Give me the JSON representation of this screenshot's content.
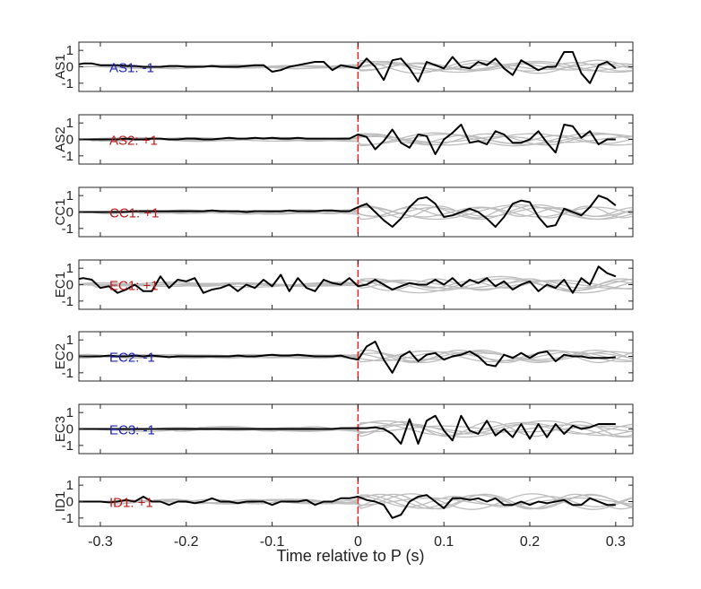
{
  "chart_data": {
    "type": "line",
    "xlabel": "Time relative to P (s)",
    "xlim": [
      -0.325,
      0.32
    ],
    "ylim": [
      -1.5,
      1.5
    ],
    "xticks": [
      -0.3,
      -0.2,
      -0.1,
      0,
      0.1,
      0.2,
      0.3
    ],
    "xtick_labels": [
      "-0.3",
      "-0.2",
      "-0.1",
      "0",
      "0.1",
      "0.2",
      "0.3"
    ],
    "yticks": [
      -1,
      0,
      1
    ],
    "ytick_labels": [
      "-1",
      "0",
      "1"
    ],
    "marker_time": 0,
    "colors": {
      "marker": "#e8241c",
      "main": "#000000",
      "background": "#bdbdbd",
      "positive_label": "#c0191b",
      "negative_label": "#1e24b4"
    },
    "dt": 0.01,
    "t0": -0.33,
    "panels": [
      {
        "station": "AS1",
        "annotation": "AS1: -1",
        "polarity": -1,
        "values": [
          0.1,
          0.2,
          0.2,
          0.1,
          0.1,
          0.1,
          0.05,
          0.05,
          0.0,
          0.0,
          0.0,
          0.05,
          0.05,
          0.0,
          0.0,
          0.0,
          0.05,
          0.0,
          0.0,
          0.0,
          0.05,
          0.1,
          0.1,
          -0.3,
          -0.2,
          0.0,
          0.1,
          0.2,
          0.3,
          0.3,
          -0.2,
          0.1,
          0.0,
          -0.1,
          0.5,
          0.0,
          -0.8,
          0.4,
          0.5,
          -0.1,
          -0.9,
          0.3,
          0.1,
          -0.1,
          0.6,
          0.0,
          -0.1,
          0.3,
          0.1,
          0.5,
          -0.1,
          -0.5,
          0.4,
          0.1,
          -0.2,
          0.0,
          0.0,
          0.9,
          0.9,
          -0.4,
          -1.0,
          0.1,
          0.3,
          -0.1
        ]
      },
      {
        "station": "AS2",
        "annotation": "AS2: +1",
        "polarity": 1,
        "values": [
          0.0,
          0.0,
          0.0,
          0.0,
          0.0,
          0.0,
          0.05,
          0.0,
          0.0,
          0.05,
          0.05,
          0.0,
          0.0,
          0.05,
          0.05,
          0.0,
          0.0,
          0.05,
          0.1,
          0.05,
          0.05,
          0.1,
          0.05,
          0.1,
          0.05,
          0.05,
          0.1,
          0.05,
          0.05,
          0.05,
          0.05,
          0.05,
          0.05,
          0.3,
          0.15,
          -0.6,
          -0.1,
          0.6,
          -0.2,
          -0.5,
          0.3,
          0.2,
          -0.9,
          0.0,
          0.4,
          0.9,
          -0.2,
          -0.1,
          -0.3,
          0.5,
          0.3,
          -0.2,
          -0.2,
          0.0,
          0.5,
          -0.2,
          -0.8,
          0.9,
          0.8,
          0.1,
          0.5,
          -0.3,
          0.0,
          0.0
        ]
      },
      {
        "station": "CC1",
        "annotation": "CC1: +1",
        "polarity": 1,
        "values": [
          0.0,
          0.0,
          0.0,
          0.0,
          0.0,
          0.0,
          0.0,
          0.05,
          0.05,
          0.05,
          0.05,
          0.05,
          0.05,
          0.05,
          0.05,
          0.05,
          0.1,
          0.05,
          0.05,
          0.05,
          0.0,
          0.05,
          0.05,
          0.05,
          0.05,
          0.1,
          0.05,
          0.05,
          0.05,
          0.1,
          0.1,
          0.05,
          0.05,
          0.3,
          0.5,
          0.0,
          -0.5,
          -0.9,
          -0.4,
          0.3,
          0.8,
          0.9,
          0.5,
          -0.3,
          -0.2,
          0.0,
          0.2,
          0.0,
          -0.4,
          -0.9,
          -0.3,
          0.5,
          0.7,
          0.6,
          -0.3,
          -0.9,
          -0.8,
          0.2,
          0.0,
          -0.2,
          0.3,
          1.0,
          0.8,
          0.4
        ]
      },
      {
        "station": "EC1",
        "annotation": "EC1: +1",
        "polarity": 1,
        "values": [
          0.3,
          0.4,
          0.3,
          -0.2,
          -0.1,
          -0.5,
          -0.3,
          0.0,
          -0.4,
          -0.4,
          0.5,
          -0.2,
          0.3,
          0.2,
          0.4,
          -0.5,
          -0.3,
          -0.2,
          0.0,
          -0.4,
          0.0,
          -0.2,
          0.3,
          -0.1,
          0.6,
          -0.4,
          0.4,
          -0.2,
          -0.4,
          0.3,
          0.1,
          0.0,
          0.4,
          -0.1,
          0.0,
          0.3,
          0.0,
          -0.3,
          -0.1,
          0.1,
          0.0,
          0.0,
          0.3,
          0.0,
          0.4,
          -0.1,
          0.3,
          0.1,
          0.4,
          -0.1,
          0.2,
          -0.3,
          0.0,
          0.2,
          -0.4,
          0.0,
          -0.2,
          0.3,
          -0.5,
          0.4,
          0.0,
          1.1,
          0.7,
          0.5
        ]
      },
      {
        "station": "EC2",
        "annotation": "EC2: -1",
        "polarity": -1,
        "values": [
          0.0,
          0.0,
          0.0,
          0.0,
          0.05,
          0.0,
          0.0,
          0.05,
          0.0,
          0.05,
          0.0,
          -0.05,
          0.0,
          0.0,
          0.0,
          0.0,
          0.0,
          0.0,
          0.0,
          0.05,
          0.0,
          0.0,
          0.05,
          0.1,
          0.05,
          0.05,
          0.1,
          0.05,
          0.0,
          0.0,
          0.0,
          0.05,
          -0.1,
          -0.2,
          0.6,
          0.9,
          -0.2,
          -1.0,
          0.0,
          0.3,
          -0.3,
          0.1,
          0.2,
          -0.2,
          0.0,
          0.1,
          0.3,
          0.0,
          -0.5,
          -0.6,
          0.1,
          -0.1,
          0.2,
          -0.1,
          0.2,
          0.3,
          -0.3,
          0.1,
          0.0,
          0.0,
          -0.1,
          -0.1,
          -0.1,
          -0.05
        ]
      },
      {
        "station": "EC3",
        "annotation": "EC3: -1",
        "polarity": -1,
        "values": [
          0.0,
          0.0,
          0.0,
          0.0,
          0.0,
          0.0,
          0.0,
          0.0,
          0.0,
          0.0,
          0.0,
          0.0,
          0.0,
          0.0,
          0.0,
          0.0,
          0.0,
          0.0,
          0.0,
          0.0,
          0.0,
          0.0,
          0.0,
          0.0,
          0.0,
          0.0,
          0.0,
          0.0,
          0.0,
          0.0,
          0.0,
          0.05,
          0.05,
          0.05,
          0.05,
          0.1,
          0.0,
          -0.3,
          -0.9,
          0.6,
          -0.9,
          0.5,
          0.8,
          -0.1,
          -0.7,
          0.8,
          -0.1,
          -0.3,
          0.5,
          -0.4,
          0.0,
          -0.5,
          0.3,
          -0.6,
          0.3,
          -0.5,
          0.3,
          -0.3,
          0.2,
          0.0,
          0.1,
          0.3,
          0.3,
          0.3
        ]
      },
      {
        "station": "ID1",
        "annotation": "ID1: +1",
        "polarity": 1,
        "values": [
          0.0,
          0.0,
          0.0,
          0.0,
          -0.05,
          0.0,
          0.1,
          0.0,
          0.3,
          0.0,
          0.0,
          -0.2,
          0.0,
          0.0,
          -0.1,
          0.0,
          0.2,
          0.0,
          0.0,
          -0.1,
          0.0,
          0.0,
          0.0,
          -0.2,
          0.0,
          0.0,
          0.0,
          0.1,
          -0.2,
          0.0,
          0.0,
          0.2,
          0.2,
          0.3,
          0.1,
          0.0,
          -0.2,
          -1.0,
          -0.8,
          0.0,
          0.3,
          0.4,
          0.0,
          -0.4,
          0.2,
          0.2,
          0.1,
          0.2,
          0.0,
          0.2,
          -0.2,
          -0.2,
          0.0,
          -0.2,
          0.0,
          -0.1,
          0.0,
          0.1,
          -0.2,
          -0.2,
          0.2,
          0.0,
          -0.2,
          -0.2
        ]
      }
    ]
  }
}
